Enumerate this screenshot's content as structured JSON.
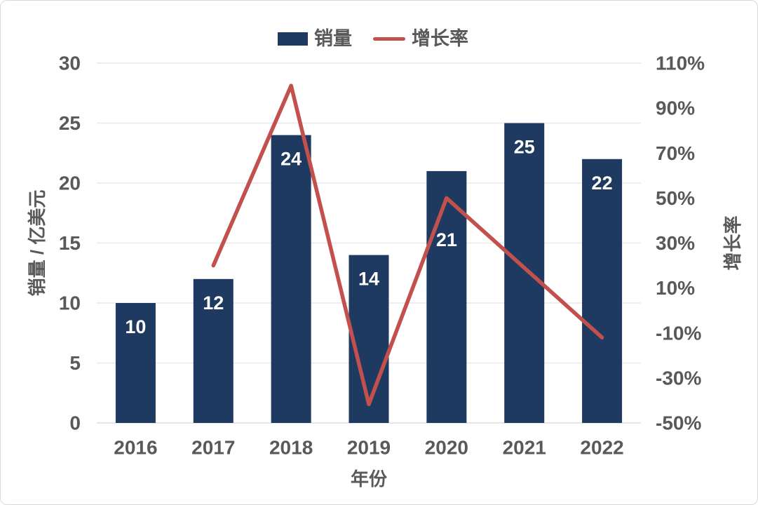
{
  "chart_data": {
    "type": "combo_bar_line",
    "title": "",
    "categories": [
      "2016",
      "2017",
      "2018",
      "2019",
      "2020",
      "2021",
      "2022"
    ],
    "series": [
      {
        "name": "销量",
        "type": "bar",
        "yaxis": "left",
        "color": "#1F3A60",
        "values": [
          10,
          12,
          24,
          14,
          21,
          25,
          22
        ],
        "data_labels": [
          "10",
          "12",
          "24",
          "14",
          "21",
          "25",
          "22"
        ],
        "data_label_color": "#FFFFFF"
      },
      {
        "name": "增长率",
        "type": "line",
        "yaxis": "right",
        "color": "#C2504C",
        "unit": "%",
        "values": [
          null,
          20,
          100,
          -41.7,
          50,
          19,
          -12
        ]
      }
    ],
    "x_axis": {
      "title": "年份"
    },
    "left_axis": {
      "title": "销量 / 亿美元",
      "min": 0,
      "max": 30,
      "step": 5,
      "ticks": [
        0,
        5,
        10,
        15,
        20,
        25,
        30
      ]
    },
    "right_axis": {
      "title": "增长率",
      "min": -50,
      "max": 110,
      "step": 20,
      "ticks": [
        110,
        90,
        70,
        50,
        30,
        10,
        -10,
        -30,
        -50
      ],
      "suffix": "%"
    },
    "legend": {
      "position": "top",
      "items": [
        "销量",
        "增长率"
      ]
    },
    "grid": "horizontal"
  },
  "style": {
    "text_color": "#595959",
    "grid_color": "#E9E9E9",
    "baseline_color": "#DEDEDE",
    "background": "#FFFFFF",
    "border_color": "#D9D9D9",
    "bar_label_extra_offset": [
      0,
      0,
      0,
      0,
      64,
      0,
      0
    ]
  }
}
